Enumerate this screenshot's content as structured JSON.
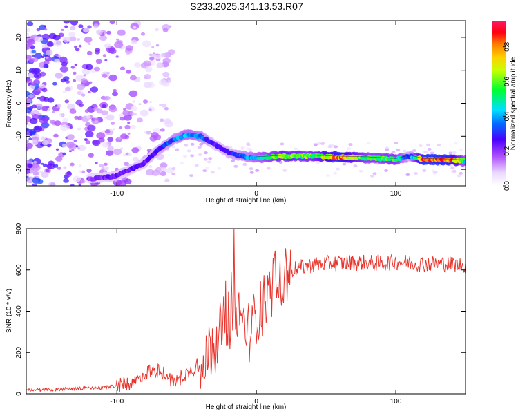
{
  "figure_title": "S233.2025.341.13.53.R07",
  "colors": {
    "snr_line": "#e8342c",
    "axis": "#000000",
    "spectrogram_colormap": [
      "#ffffff",
      "#c070ff",
      "#7a00ff",
      "#2040ff",
      "#00d8ff",
      "#00ff40",
      "#ffff00",
      "#ff8000",
      "#ff0000",
      "#ff1a66"
    ]
  },
  "chart_data": [
    {
      "id": "spectrogram",
      "type": "heatmap",
      "title": "S233.2025.341.13.53.R07",
      "xlabel": "Height of straight line (km)",
      "ylabel": "Frequency (Hz)",
      "xlim": [
        -165,
        150
      ],
      "ylim": [
        -25,
        25
      ],
      "xticks": [
        -100,
        0,
        100
      ],
      "yticks": [
        -20,
        -10,
        0,
        10,
        20
      ],
      "xtick_labels": [
        "-100",
        "0",
        "100"
      ],
      "ytick_labels": [
        "-20",
        "-10",
        "0",
        "10",
        "20"
      ],
      "colorbar": {
        "label": "Normalized spectral amplitude",
        "range": [
          0,
          0.95
        ],
        "ticks": [
          0.0,
          0.2,
          0.4,
          0.6,
          0.8
        ],
        "tick_labels": [
          "0.0",
          "0.2",
          "0.4",
          "0.6",
          "0.8"
        ]
      },
      "ridge": {
        "description_points_x_km": [
          -120,
          -100,
          -80,
          -70,
          -60,
          -50,
          -40,
          -30,
          -20,
          -10,
          0,
          20,
          40,
          60,
          80,
          100,
          110,
          120,
          140,
          150
        ],
        "frequency_hz": [
          -23,
          -22,
          -18,
          -14,
          -11,
          -9.5,
          -10,
          -12.5,
          -15,
          -16,
          -16.5,
          -16,
          -16,
          -16.3,
          -16.5,
          -17,
          -16,
          -17,
          -17.2,
          -17.5
        ],
        "amplitude": [
          0.2,
          0.25,
          0.25,
          0.3,
          0.35,
          0.45,
          0.4,
          0.25,
          0.3,
          0.35,
          0.45,
          0.65,
          0.6,
          0.85,
          0.55,
          0.6,
          0.3,
          0.9,
          0.85,
          0.5
        ]
      }
    },
    {
      "id": "snr",
      "type": "line",
      "xlabel": "Height of straight line (km)",
      "ylabel": "SNR (10 * v/v)",
      "xlim": [
        -165,
        150
      ],
      "ylim": [
        0,
        800
      ],
      "xticks": [
        -100,
        0,
        100
      ],
      "yticks": [
        0,
        200,
        400,
        600,
        800
      ],
      "xtick_labels": [
        "-100",
        "0",
        "100"
      ],
      "ytick_labels": [
        "0",
        "200",
        "400",
        "600",
        "800"
      ],
      "series": [
        {
          "name": "SNR",
          "x": [
            -165,
            -150,
            -130,
            -110,
            -100,
            -90,
            -85,
            -80,
            -75,
            -70,
            -65,
            -60,
            -55,
            -50,
            -45,
            -40,
            -35,
            -30,
            -25,
            -20,
            -15,
            -10,
            -5,
            0,
            5,
            10,
            15,
            20,
            25,
            30,
            40,
            50,
            60,
            70,
            80,
            90,
            100,
            110,
            120,
            130,
            140,
            150
          ],
          "values": [
            20,
            20,
            25,
            30,
            40,
            50,
            70,
            100,
            110,
            105,
            100,
            60,
            70,
            100,
            120,
            150,
            210,
            260,
            320,
            370,
            400,
            330,
            320,
            380,
            440,
            500,
            540,
            570,
            600,
            610,
            625,
            630,
            635,
            635,
            635,
            632,
            640,
            635,
            630,
            630,
            628,
            625
          ]
        }
      ],
      "peaks": [
        {
          "x": -16,
          "value": 800
        },
        {
          "x": -18,
          "value": 590
        },
        {
          "x": -22,
          "value": 550
        }
      ]
    }
  ]
}
